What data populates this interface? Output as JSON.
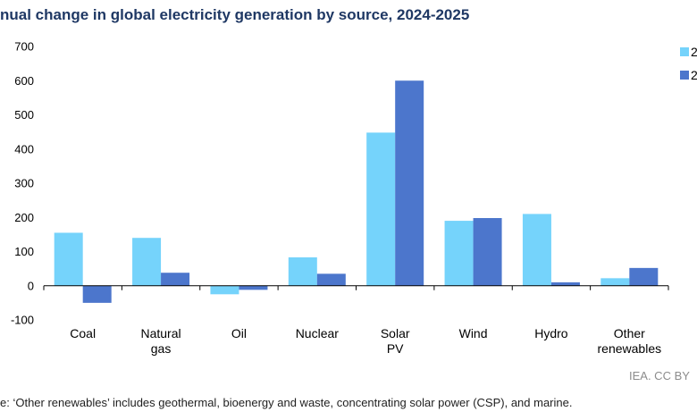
{
  "chart_data": {
    "type": "bar",
    "title": "nual change in global electricity generation by source, 2024-2025",
    "categories": [
      [
        "Coal"
      ],
      [
        "Natural",
        "gas"
      ],
      [
        "Oil"
      ],
      [
        "Nuclear"
      ],
      [
        "Solar",
        "PV"
      ],
      [
        "Wind"
      ],
      [
        "Hydro"
      ],
      [
        "Other",
        "renewables"
      ]
    ],
    "series": [
      {
        "name": "2",
        "color": "#75d3fb",
        "values": [
          155,
          140,
          -25,
          83,
          448,
          190,
          210,
          22
        ]
      },
      {
        "name": "2",
        "color": "#4c76cc",
        "values": [
          -50,
          38,
          -12,
          35,
          600,
          198,
          10,
          52
        ]
      }
    ],
    "ylim": [
      -100,
      700
    ],
    "yticks": [
      "-100",
      "0",
      "100",
      "200",
      "300",
      "400",
      "500",
      "600",
      "700"
    ],
    "grid": false,
    "legend": "top-right"
  },
  "source_text": "IEA. CC BY",
  "note_text": "e: ‘Other renewables’ includes geothermal, bioenergy and waste, concentrating solar power (CSP), and marine."
}
